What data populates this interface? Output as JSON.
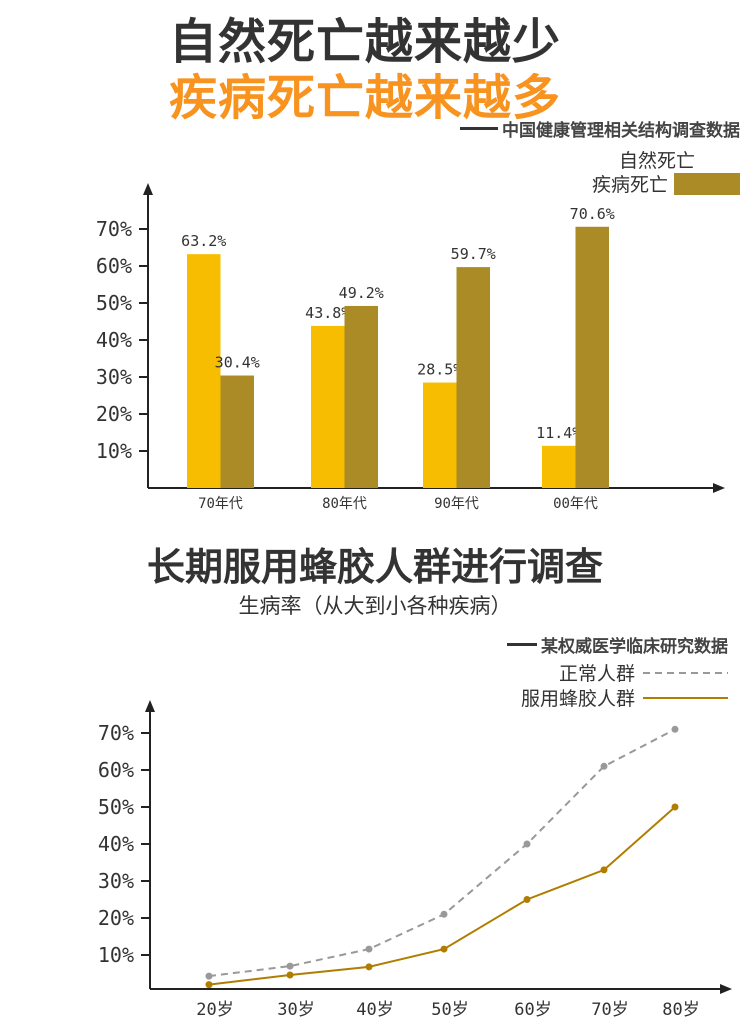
{
  "header": {
    "title_line1": "自然死亡越来越少",
    "title_line2": "疾病死亡越来越多",
    "source1": "中国健康管理相关结构调查数据",
    "title2": "长期服用蜂胶人群进行调查",
    "subtitle2": "生病率（从大到小各种疾病）",
    "source2": "某权威医学临床研究数据"
  },
  "colors": {
    "natural": "#f7bd00",
    "disease": "#ab8b26",
    "normal": "#999999",
    "propolis": "#b07d00",
    "orange": "#f7931e"
  },
  "chart_data": [
    {
      "type": "bar",
      "categories": [
        "70年代",
        "80年代",
        "90年代",
        "00年代"
      ],
      "series": [
        {
          "name": "自然死亡",
          "values": [
            63.2,
            43.8,
            28.5,
            11.4
          ],
          "labels": [
            "63.2%",
            "43.8%",
            "28.5%",
            "11.4%"
          ]
        },
        {
          "name": "疾病死亡",
          "values": [
            30.4,
            49.2,
            59.7,
            70.6
          ],
          "labels": [
            "30.4%",
            "49.2%",
            "59.7%",
            "70.6%"
          ]
        }
      ],
      "yticks": [
        "10%",
        "20%",
        "30%",
        "40%",
        "50%",
        "60%",
        "70%"
      ],
      "ylim": [
        0,
        70
      ],
      "legend": "top-right"
    },
    {
      "type": "line",
      "categories": [
        "20岁",
        "30岁",
        "40岁",
        "50岁",
        "60岁",
        "70岁",
        "80岁"
      ],
      "series": [
        {
          "name": "正常人群",
          "style": "dashed",
          "values": [
            4.3,
            7,
            11.6,
            21,
            40,
            61,
            71
          ]
        },
        {
          "name": "服用蜂胶人群",
          "style": "solid",
          "values": [
            2,
            4.6,
            6.8,
            11.6,
            25,
            33,
            50
          ]
        }
      ],
      "yticks": [
        "10%",
        "20%",
        "30%",
        "40%",
        "50%",
        "60%",
        "70%"
      ],
      "ylim": [
        0,
        70
      ],
      "legend": "top-right"
    }
  ]
}
